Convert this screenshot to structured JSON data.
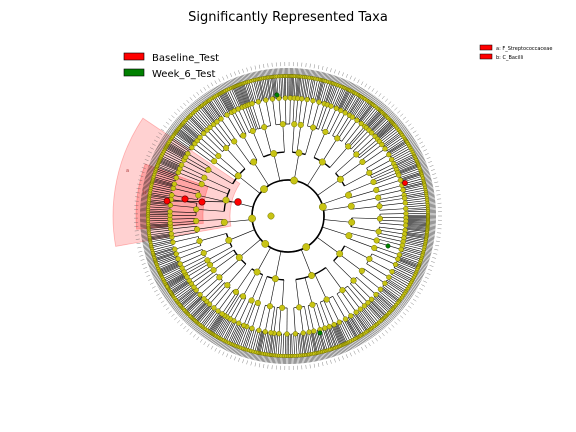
{
  "title": "Significantly Represented Taxa",
  "classes": [
    {
      "name": "Baseline_Test",
      "color": "#ff0000"
    },
    {
      "name": "Week_6_Test",
      "color": "#008000"
    }
  ],
  "clades": [
    {
      "label": "a: F_Streptococcaceae",
      "color": "#ff0000"
    },
    {
      "label": "b: C_Bacilli",
      "color": "#ff0000"
    }
  ],
  "sector_letters": [
    "a",
    "b"
  ],
  "node_color": "#c8c414",
  "node_edge_color": "#6b6b00",
  "sector_color": "#ff0000"
}
